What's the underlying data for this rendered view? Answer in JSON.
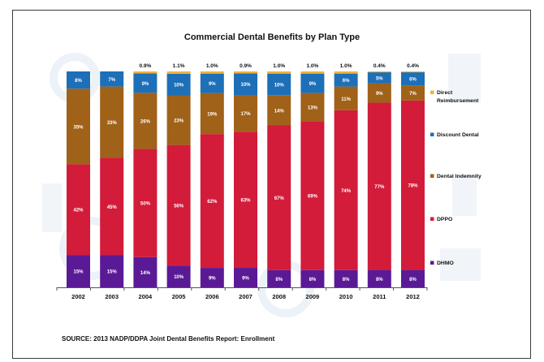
{
  "chart_data": {
    "type": "bar",
    "stacked": true,
    "percent": true,
    "title": "Commercial Dental Benefits by Plan Type",
    "source": "SOURCE: 2013 NADP/DDPA Joint Dental Benefits Report: Enrollment",
    "categories": [
      "2002",
      "2003",
      "2004",
      "2005",
      "2006",
      "2007",
      "2008",
      "2009",
      "2010",
      "2011",
      "2012"
    ],
    "series": [
      {
        "name": "DHMO",
        "color": "#5a1a96",
        "values": [
          15,
          15,
          14,
          10,
          9,
          9,
          8,
          8,
          8,
          8,
          8
        ],
        "labels": [
          "15%",
          "15%",
          "14%",
          "10%",
          "9%",
          "9%",
          "8%",
          "8%",
          "8%",
          "8%",
          "8%"
        ]
      },
      {
        "name": "DPPO",
        "color": "#d31b3a",
        "values": [
          42,
          45,
          50,
          56,
          62,
          63,
          67,
          69,
          74,
          77,
          78
        ],
        "labels": [
          "42%",
          "45%",
          "50%",
          "56%",
          "62%",
          "63%",
          "67%",
          "69%",
          "74%",
          "77%",
          "78%"
        ]
      },
      {
        "name": "Dental Indemnity",
        "color": "#a06118",
        "values": [
          35,
          33,
          26,
          23,
          19,
          17,
          14,
          13,
          11,
          9,
          7
        ],
        "labels": [
          "35%",
          "33%",
          "26%",
          "23%",
          "19%",
          "17%",
          "14%",
          "13%",
          "11%",
          "9%",
          "7%"
        ]
      },
      {
        "name": "Discount Dental",
        "color": "#1d6fb8",
        "values": [
          8,
          7,
          9,
          10,
          9,
          10,
          10,
          9,
          6,
          5,
          6
        ],
        "labels": [
          "8%",
          "7%",
          "9%",
          "10%",
          "9%",
          "10%",
          "10%",
          "9%",
          "6%",
          "5%",
          "6%"
        ]
      },
      {
        "name": "Direct Reimbursement",
        "color": "#f2b23a",
        "values": [
          0,
          0,
          0.9,
          1.1,
          1.0,
          0.9,
          1.0,
          1.0,
          1.0,
          0.4,
          0.4
        ],
        "labels": [
          "",
          "",
          "0.9%",
          "1.1%",
          "1.0%",
          "0.9%",
          "1.0%",
          "1.0%",
          "1.0%",
          "0.4%",
          "0.4%"
        ]
      }
    ],
    "legend_labels": [
      "Direct Reimbursement",
      "Discount Dental",
      "Dental Indemnity",
      "DPPO",
      "DHMO"
    ],
    "legend_position": "right",
    "grid": false
  }
}
